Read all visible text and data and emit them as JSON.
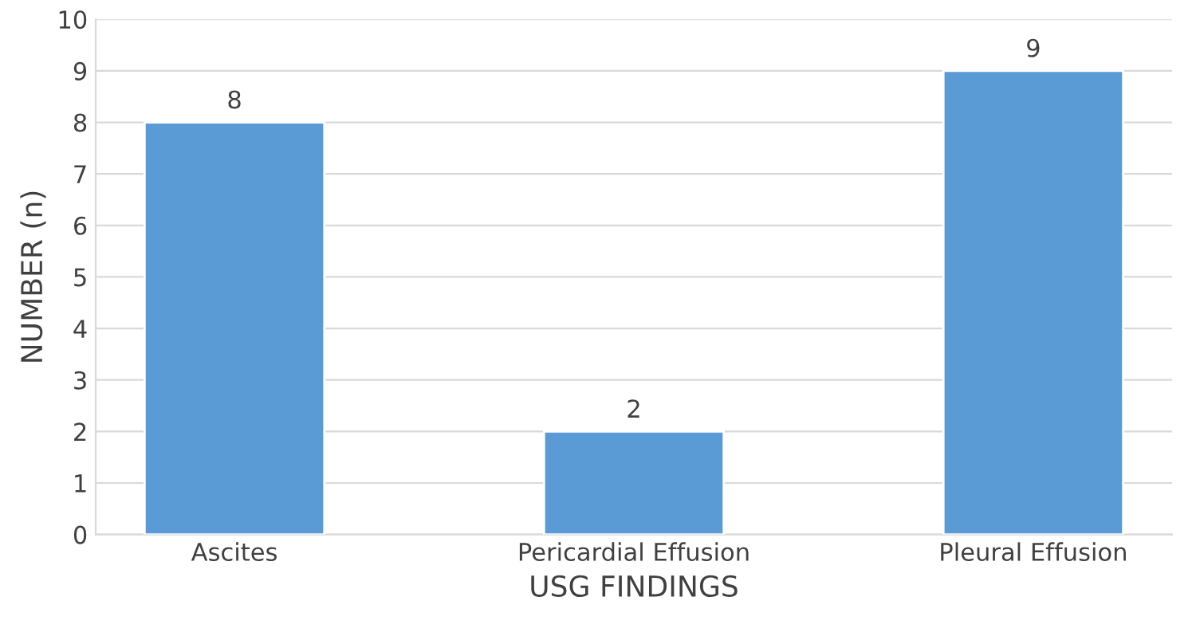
{
  "chart_data": {
    "type": "bar",
    "xlabel": "USG FINDINGS",
    "ylabel": "NUMBER (n)",
    "categories": [
      "Ascites",
      "Pericardial Effusion",
      "Pleural Effusion"
    ],
    "values": [
      8,
      2,
      9
    ],
    "color": "#5b9bd5",
    "ylim": [
      0,
      10
    ],
    "yticks": [
      0,
      1,
      2,
      3,
      4,
      5,
      6,
      7,
      8,
      9,
      10
    ],
    "grid": "y",
    "data_labels": true
  }
}
